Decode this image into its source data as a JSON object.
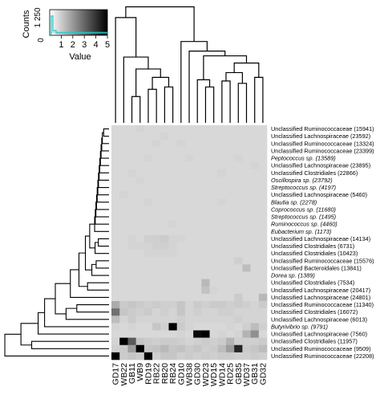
{
  "chart_data": {
    "type": "heatmap",
    "key": {
      "ylabel": "Counts",
      "yticks": [
        "0",
        "1 250"
      ],
      "xlabel": "Value",
      "xticks": [
        "1",
        "2",
        "3",
        "4",
        "5"
      ],
      "range": [
        0,
        5
      ],
      "color_scale": [
        "#ffffff",
        "#000000"
      ],
      "histogram_color": "#22cccc"
    },
    "columns": [
      "GD17",
      "WB22",
      "GB11",
      "WB9",
      "RD19",
      "RB22",
      "RB20",
      "RB24",
      "GD10",
      "WB38",
      "GD30",
      "WD23",
      "WD15",
      "WD14",
      "RD25",
      "GB35",
      "WD37",
      "GB31",
      "GD32"
    ],
    "rows": [
      {
        "label": "Unclassified Ruminococcaceae (15941)",
        "italic": false
      },
      {
        "label": "Unclassified Lachnospiraceae (23592)",
        "italic": false
      },
      {
        "label": "Unclassified Ruminococcaceae (13324)",
        "italic": false
      },
      {
        "label": "Unclassified Ruminococcaceae (23399)",
        "italic": false
      },
      {
        "label": "Peptococcus sp. (13589)",
        "italic": true
      },
      {
        "label": "Unclassified Lachnospiraceae (23895)",
        "italic": false
      },
      {
        "label": "Unclassified Clostridiales (22866)",
        "italic": false
      },
      {
        "label": "Oscillospira sp. (23792)",
        "italic": true
      },
      {
        "label": "Streptococcus sp. (4197)",
        "italic": true
      },
      {
        "label": "Unclassified Lachnospiraceae (5460)",
        "italic": false
      },
      {
        "label": "Blautia sp. (2278)",
        "italic": true
      },
      {
        "label": "Coprococcus sp. (11680)",
        "italic": true
      },
      {
        "label": "Streptococcus sp. (1495)",
        "italic": true
      },
      {
        "label": "Ruminococcus sp. (4460)",
        "italic": true
      },
      {
        "label": "Eubacterium sp. (1173)",
        "italic": true
      },
      {
        "label": "Unclassified Lachnospiraceae (14134)",
        "italic": false
      },
      {
        "label": "Unclassified Clostridiales (6731)",
        "italic": false
      },
      {
        "label": "Unclassified Clostridiales (10423)",
        "italic": false
      },
      {
        "label": "Unclassified Ruminococcaceae (15576)",
        "italic": false
      },
      {
        "label": "Unclassified Bacteroidales (13841)",
        "italic": false
      },
      {
        "label": "Dorea sp. (1389)",
        "italic": true
      },
      {
        "label": "Unclassified Clostridiales (7534)",
        "italic": false
      },
      {
        "label": "Unclassified Lachnospiraceae (20417)",
        "italic": false
      },
      {
        "label": "Unclassified Lachnospiraceae (24801)",
        "italic": false
      },
      {
        "label": "Unclassified Ruminococcaceae (11340)",
        "italic": false
      },
      {
        "label": "Unclassified Clostridiales (16072)",
        "italic": false
      },
      {
        "label": "Unclassified Lachnospiraceae (6013)",
        "italic": false
      },
      {
        "label": "Butyrivibrio sp. (9791)",
        "italic": true
      },
      {
        "label": "Unclassified Lachnospiraceae (7560)",
        "italic": false
      },
      {
        "label": "Unclassified Clostridiales (11957)",
        "italic": false
      },
      {
        "label": "Unclassified Ruminococcaceae (9509)",
        "italic": false
      },
      {
        "label": "Unclassified Ruminococcaceae (22208)",
        "italic": false
      }
    ],
    "values": [
      [
        0.2,
        0.2,
        0.2,
        0.3,
        0.2,
        0.2,
        0.2,
        0.2,
        0.2,
        0.2,
        0.2,
        0.2,
        0.2,
        0.2,
        0.2,
        0.2,
        0.2,
        0.2,
        0.2
      ],
      [
        0.2,
        0.2,
        0.2,
        0.2,
        0.2,
        0.2,
        0.3,
        0.2,
        0.2,
        0.2,
        0.2,
        0.2,
        0.2,
        0.2,
        0.2,
        0.2,
        0.2,
        0.2,
        0.2
      ],
      [
        0.2,
        0.2,
        0.2,
        0.2,
        0.2,
        0.3,
        0.2,
        0.2,
        0.3,
        0.2,
        0.2,
        0.2,
        0.2,
        0.2,
        0.2,
        0.2,
        0.2,
        0.2,
        0.2
      ],
      [
        0.2,
        0.2,
        0.2,
        0.2,
        0.2,
        0.2,
        0.2,
        0.2,
        0.2,
        0.2,
        0.2,
        0.2,
        0.2,
        0.2,
        0.2,
        0.2,
        0.2,
        0.2,
        0.2
      ],
      [
        0.2,
        0.2,
        0.2,
        0.2,
        0.3,
        0.2,
        0.2,
        0.2,
        0.2,
        0.3,
        0.2,
        0.2,
        0.2,
        0.2,
        0.2,
        0.3,
        0.2,
        0.2,
        0.2
      ],
      [
        0.2,
        0.2,
        0.2,
        0.2,
        0.2,
        0.2,
        0.2,
        0.2,
        0.2,
        0.2,
        0.2,
        0.2,
        0.2,
        0.2,
        0.2,
        0.2,
        0.2,
        0.3,
        0.2
      ],
      [
        0.2,
        0.2,
        0.3,
        0.2,
        0.2,
        0.2,
        0.2,
        0.2,
        0.2,
        0.2,
        0.2,
        0.2,
        0.2,
        0.3,
        0.2,
        0.2,
        0.2,
        0.2,
        0.2
      ],
      [
        0.2,
        0.2,
        0.2,
        0.3,
        0.2,
        0.2,
        0.2,
        0.2,
        0.2,
        0.2,
        0.2,
        0.2,
        0.2,
        0.2,
        0.2,
        0.2,
        0.2,
        0.2,
        0.2
      ],
      [
        0.2,
        0.2,
        0.2,
        0.2,
        0.2,
        0.2,
        0.2,
        0.2,
        0.2,
        0.2,
        0.2,
        0.2,
        0.2,
        0.2,
        0.2,
        0.2,
        0.2,
        0.2,
        0.2
      ],
      [
        0.2,
        0.3,
        0.2,
        0.2,
        0.2,
        0.2,
        0.2,
        0.2,
        0.2,
        0.2,
        0.2,
        0.2,
        0.2,
        0.2,
        0.2,
        0.2,
        0.2,
        0.2,
        0.2
      ],
      [
        0.2,
        0.2,
        0.2,
        0.2,
        0.3,
        0.2,
        0.2,
        0.2,
        0.2,
        0.2,
        0.2,
        0.2,
        0.2,
        0.3,
        0.2,
        0.2,
        0.2,
        0.2,
        0.2
      ],
      [
        0.2,
        0.2,
        0.2,
        0.2,
        0.2,
        0.2,
        0.2,
        0.2,
        0.2,
        0.2,
        0.2,
        0.2,
        0.2,
        0.2,
        0.2,
        0.2,
        0.2,
        0.2,
        0.2
      ],
      [
        0.2,
        0.2,
        0.2,
        0.2,
        0.2,
        0.2,
        0.2,
        0.2,
        0.2,
        0.2,
        0.2,
        0.2,
        0.2,
        0.2,
        0.2,
        0.2,
        0.2,
        0.2,
        0.2
      ],
      [
        0.2,
        0.2,
        0.2,
        0.2,
        0.2,
        0.2,
        0.2,
        0.3,
        0.2,
        0.2,
        0.2,
        0.2,
        0.2,
        0.2,
        0.2,
        0.2,
        0.2,
        0.2,
        0.2
      ],
      [
        0.2,
        0.2,
        0.2,
        0.2,
        0.2,
        0.2,
        0.2,
        0.2,
        0.2,
        0.2,
        0.2,
        0.2,
        0.2,
        0.2,
        0.2,
        0.2,
        0.2,
        0.2,
        0.2
      ],
      [
        0.2,
        0.2,
        0.3,
        0.2,
        0.4,
        0.4,
        0.5,
        0.3,
        0.3,
        0.2,
        0.2,
        0.2,
        0.2,
        0.2,
        0.2,
        0.2,
        0.2,
        0.2,
        0.2
      ],
      [
        0.2,
        0.2,
        0.3,
        0.3,
        0.3,
        0.4,
        0.4,
        0.3,
        0.2,
        0.2,
        0.2,
        0.2,
        0.2,
        0.2,
        0.2,
        0.2,
        0.2,
        0.2,
        0.2
      ],
      [
        0.2,
        0.2,
        0.2,
        0.2,
        0.3,
        0.3,
        0.3,
        0.3,
        0.2,
        0.2,
        0.2,
        0.2,
        0.2,
        0.2,
        0.2,
        0.2,
        0.2,
        0.2,
        0.2
      ],
      [
        0.2,
        0.2,
        0.2,
        0.2,
        0.2,
        0.2,
        0.2,
        0.2,
        0.2,
        0.2,
        0.2,
        0.2,
        0.2,
        0.2,
        0.2,
        0.4,
        0.2,
        0.2,
        0.2
      ],
      [
        0.2,
        0.2,
        0.2,
        0.2,
        0.2,
        0.2,
        0.2,
        0.2,
        0.2,
        0.2,
        0.2,
        0.2,
        0.2,
        0.2,
        0.2,
        0.2,
        0.8,
        0.2,
        0.2
      ],
      [
        0.2,
        0.2,
        0.2,
        0.2,
        0.2,
        0.2,
        0.2,
        0.2,
        0.2,
        0.2,
        0.2,
        0.2,
        0.2,
        0.2,
        0.2,
        0.2,
        0.2,
        0.2,
        0.2
      ],
      [
        0.2,
        0.2,
        0.2,
        0.2,
        0.2,
        0.2,
        0.2,
        0.2,
        0.2,
        0.2,
        0.2,
        0.9,
        0.2,
        0.2,
        0.2,
        0.2,
        0.2,
        0.2,
        0.2
      ],
      [
        0.2,
        0.2,
        0.2,
        0.2,
        0.2,
        0.2,
        0.2,
        0.2,
        0.2,
        0.2,
        0.2,
        0.7,
        0.3,
        0.2,
        0.2,
        0.2,
        0.2,
        0.2,
        0.2
      ],
      [
        0.2,
        0.2,
        0.2,
        0.2,
        0.2,
        0.2,
        0.2,
        0.2,
        0.2,
        0.2,
        0.2,
        0.2,
        0.2,
        0.2,
        0.2,
        0.5,
        0.2,
        0.2,
        0.9
      ],
      [
        1.2,
        0.5,
        0.6,
        0.5,
        0.4,
        0.5,
        0.4,
        0.4,
        0.6,
        0.3,
        0.5,
        0.4,
        0.5,
        0.5,
        0.4,
        0.5,
        0.4,
        0.3,
        0.5
      ],
      [
        2.5,
        0.6,
        0.5,
        0.4,
        0.5,
        0.3,
        0.4,
        0.3,
        0.6,
        0.3,
        0.4,
        0.3,
        0.3,
        0.4,
        0.4,
        0.3,
        0.3,
        0.3,
        0.3
      ],
      [
        0.8,
        0.3,
        0.5,
        0.3,
        0.3,
        0.3,
        0.3,
        0.3,
        0.4,
        0.3,
        0.3,
        0.3,
        0.3,
        0.3,
        0.3,
        0.4,
        0.3,
        0.3,
        0.3
      ],
      [
        0.3,
        0.2,
        0.3,
        0.2,
        0.2,
        0.6,
        0.4,
        5.0,
        0.5,
        0.3,
        0.2,
        0.2,
        0.2,
        0.2,
        0.3,
        0.2,
        0.4,
        0.8,
        0.4
      ],
      [
        0.2,
        0.2,
        0.2,
        0.2,
        0.2,
        0.2,
        0.2,
        0.2,
        0.3,
        0.2,
        4.8,
        5.0,
        0.2,
        0.3,
        0.2,
        0.3,
        1.0,
        1.8,
        0.2
      ],
      [
        0.3,
        5.0,
        3.0,
        0.6,
        0.5,
        0.4,
        0.5,
        0.5,
        0.4,
        0.3,
        0.4,
        0.5,
        0.4,
        0.5,
        1.0,
        0.4,
        0.4,
        0.4,
        0.5
      ],
      [
        0.4,
        0.5,
        1.5,
        5.0,
        0.6,
        0.7,
        0.9,
        0.6,
        0.7,
        0.5,
        0.6,
        0.4,
        0.5,
        0.8,
        1.5,
        4.2,
        0.5,
        0.6,
        0.8
      ],
      [
        5.0,
        0.5,
        0.6,
        0.5,
        5.0,
        0.4,
        0.6,
        0.6,
        0.4,
        0.5,
        0.4,
        0.5,
        0.4,
        0.5,
        0.5,
        0.4,
        0.4,
        0.5,
        0.4
      ]
    ],
    "col_dendrogram": {
      "heights": [
        0.15,
        0.2,
        0.25,
        0.28,
        0.3,
        0.35,
        0.45,
        0.4,
        0.5,
        0.55,
        0.6,
        0.65,
        0.7,
        0.72,
        0.8,
        1.0
      ],
      "description": "hierarchical clustering of samples"
    },
    "row_dendrogram": {
      "description": "hierarchical clustering of OTUs"
    }
  }
}
